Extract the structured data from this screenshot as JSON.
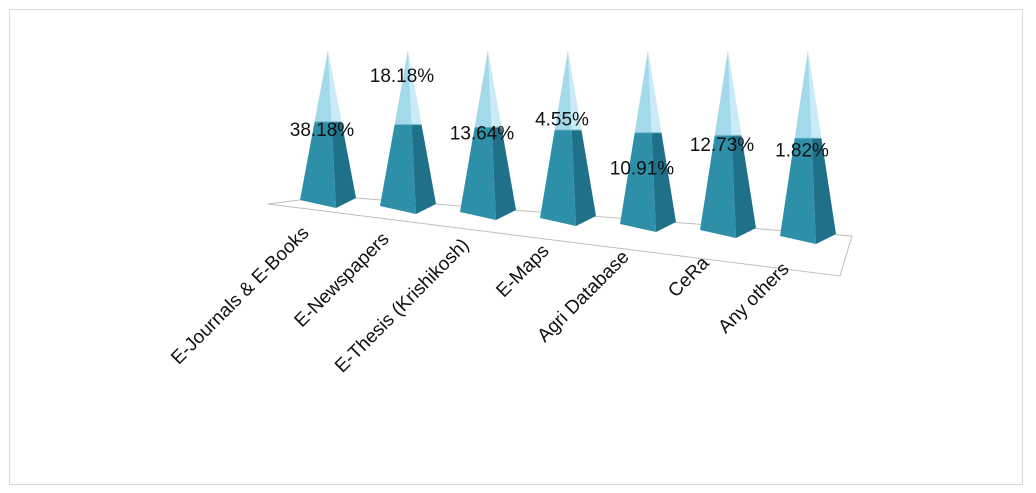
{
  "chart_data": {
    "type": "bar",
    "style": "3d-pyramid",
    "categories": [
      "E-Journals & E-Books",
      "E-Newspapers",
      "E-Thesis (Krishikosh)",
      "E-Maps",
      "Agri Database",
      "CeRa",
      "Any others"
    ],
    "values": [
      38.18,
      18.18,
      13.64,
      4.55,
      10.91,
      12.73,
      1.82
    ],
    "data_labels": [
      "38.18%",
      "18.18%",
      "13.64%",
      "4.55%",
      "10.91%",
      "12.73%",
      "1.82%"
    ],
    "title": "",
    "xlabel": "",
    "ylabel": "",
    "legend": "none",
    "grid": false,
    "colors": {
      "face_light": "#a3d9ea",
      "face_dark": "#2e8fa8",
      "side_light": "#c8ebf5",
      "side_dark": "#1f7189",
      "floor": "#ffffff",
      "floor_border": "#bfbfbf"
    }
  }
}
